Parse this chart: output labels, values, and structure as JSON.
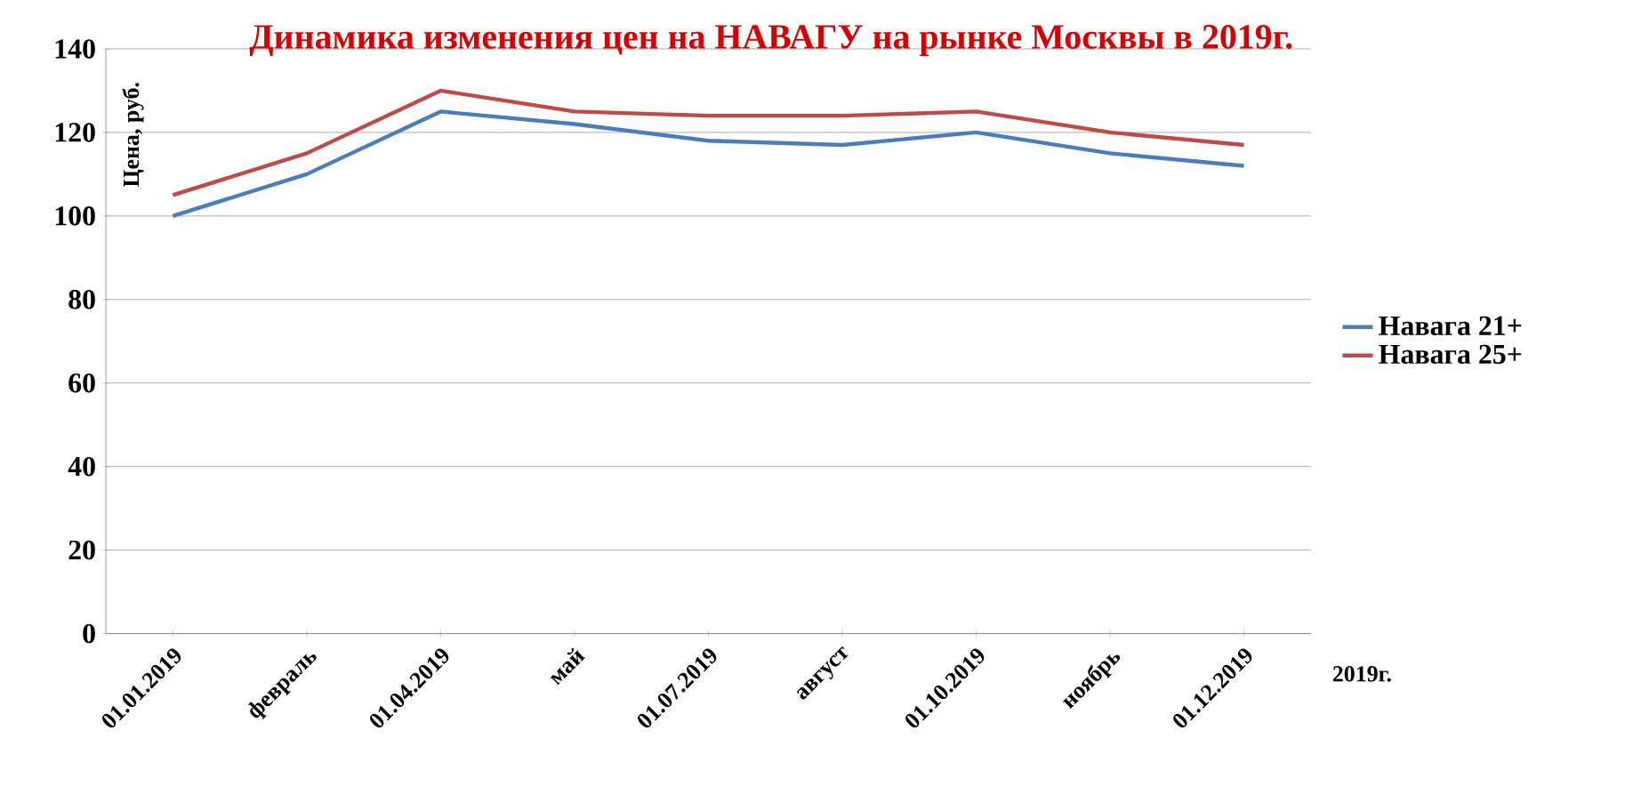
{
  "chart_data": {
    "type": "line",
    "title": "Динамика изменения цен на НАВАГУ на рынке Москвы в 2019г.",
    "ylabel": "Цена, руб.",
    "xlabel": "2019г.",
    "categories": [
      "01.01.2019",
      "февраль",
      "01.04.2019",
      "май",
      "01.07.2019",
      "август",
      "01.10.2019",
      "ноябрь",
      "01.12.2019"
    ],
    "series": [
      {
        "name": "Навага 21+",
        "color": "#4a7ebb",
        "values": [
          100,
          110,
          125,
          122,
          118,
          117,
          120,
          115,
          112
        ]
      },
      {
        "name": "Навага 25+",
        "color": "#be4b48",
        "values": [
          105,
          115,
          130,
          125,
          124,
          124,
          125,
          120,
          117
        ]
      }
    ],
    "ylim": [
      0,
      140
    ],
    "yticks": [
      0,
      20,
      40,
      60,
      80,
      100,
      120,
      140
    ],
    "grid": "y",
    "legend": "right",
    "marker": "none",
    "line_style": "solid"
  }
}
